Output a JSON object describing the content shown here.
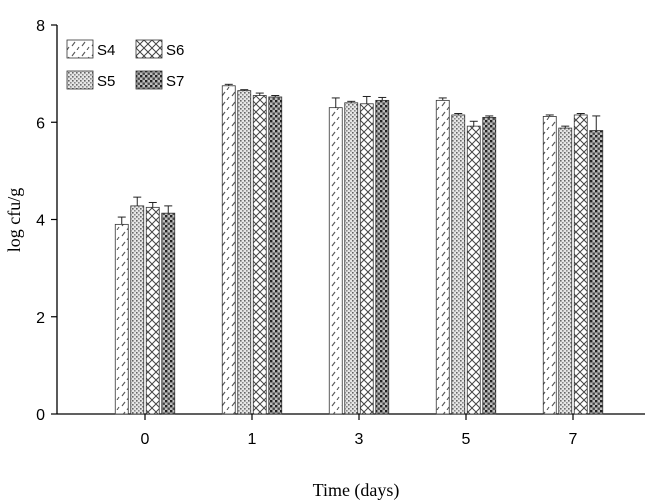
{
  "chart_data": {
    "type": "bar",
    "title": "",
    "xlabel": "Time (days)",
    "ylabel": "log cfu/g",
    "ylim": [
      0,
      8
    ],
    "yticks": [
      0,
      2,
      4,
      6,
      8
    ],
    "categories": [
      "0",
      "1",
      "3",
      "5",
      "7"
    ],
    "series": [
      {
        "name": "S4",
        "pattern": "dash",
        "values": [
          3.9,
          6.75,
          6.3,
          6.45,
          6.12
        ],
        "errors": [
          0.15,
          0.03,
          0.2,
          0.05,
          0.03
        ]
      },
      {
        "name": "S5",
        "pattern": "dots",
        "values": [
          4.28,
          6.65,
          6.4,
          6.15,
          5.88
        ],
        "errors": [
          0.18,
          0.02,
          0.03,
          0.03,
          0.04
        ]
      },
      {
        "name": "S6",
        "pattern": "crosshatch",
        "values": [
          4.25,
          6.55,
          6.38,
          5.92,
          6.15
        ],
        "errors": [
          0.1,
          0.05,
          0.15,
          0.1,
          0.03
        ]
      },
      {
        "name": "S7",
        "pattern": "dense",
        "values": [
          4.13,
          6.52,
          6.45,
          6.1,
          5.83
        ],
        "errors": [
          0.15,
          0.03,
          0.06,
          0.03,
          0.3
        ]
      }
    ],
    "legend": {
      "position": "top-left",
      "order": [
        "S4",
        "S6",
        "S5",
        "S7"
      ]
    },
    "grid": false,
    "colors": {
      "bar_stroke": "#333333",
      "axis": "#000000"
    }
  }
}
